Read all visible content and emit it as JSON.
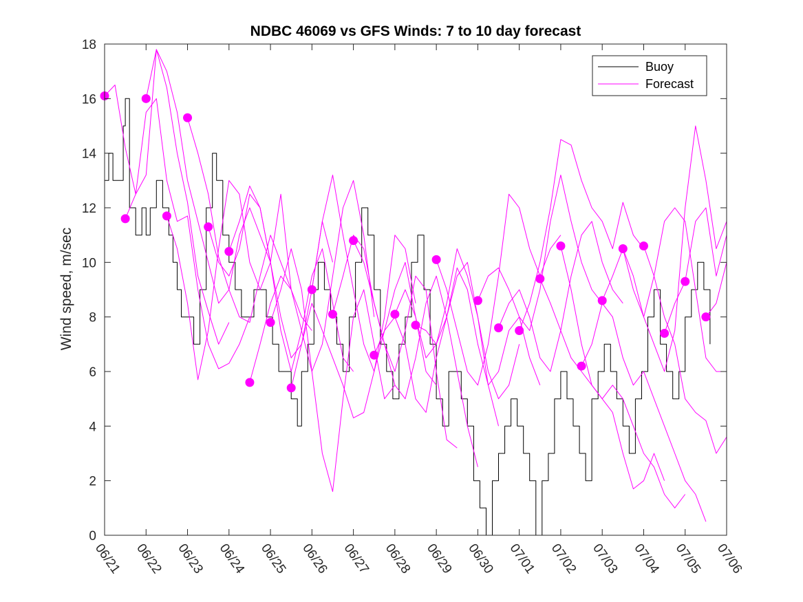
{
  "chart_data": {
    "type": "line",
    "title": "NDBC 46069 vs GFS Winds: 7 to 10 day forecast",
    "xlabel": "",
    "ylabel": "Wind speed, m/sec",
    "ylim": [
      0,
      18
    ],
    "yticks": [
      "0",
      "2",
      "4",
      "6",
      "8",
      "10",
      "12",
      "14",
      "16",
      "18"
    ],
    "xlim_days": [
      0,
      15
    ],
    "xticks": [
      "06/21",
      "06/22",
      "06/23",
      "06/24",
      "06/25",
      "06/26",
      "06/27",
      "06/28",
      "06/29",
      "06/30",
      "07/01",
      "07/02",
      "07/03",
      "07/04",
      "07/05",
      "07/06"
    ],
    "grid": false,
    "legend_position": "top-right",
    "legend": [
      {
        "label": "Buoy",
        "color": "#000000"
      },
      {
        "label": "Forecast",
        "color": "#ff00ff"
      }
    ],
    "series": [
      {
        "name": "Buoy",
        "color": "#000000",
        "x": [
          0,
          0.1,
          0.2,
          0.35,
          0.45,
          0.5,
          0.6,
          0.75,
          0.9,
          1.0,
          1.1,
          1.25,
          1.4,
          1.55,
          1.65,
          1.75,
          1.85,
          2.0,
          2.15,
          2.3,
          2.45,
          2.6,
          2.7,
          2.85,
          3.0,
          3.15,
          3.3,
          3.45,
          3.6,
          3.75,
          3.9,
          4.05,
          4.2,
          4.35,
          4.5,
          4.65,
          4.75,
          4.9,
          5.05,
          5.15,
          5.3,
          5.45,
          5.6,
          5.75,
          5.9,
          6.05,
          6.2,
          6.35,
          6.5,
          6.65,
          6.8,
          6.95,
          7.1,
          7.25,
          7.4,
          7.55,
          7.7,
          7.85,
          8.0,
          8.15,
          8.3,
          8.45,
          8.6,
          8.75,
          8.9,
          9.05,
          9.2,
          9.35,
          9.5,
          9.65,
          9.8,
          9.95,
          10.1,
          10.25,
          10.4,
          10.55,
          10.7,
          10.85,
          11.0,
          11.15,
          11.3,
          11.45,
          11.6,
          11.75,
          11.9,
          12.05,
          12.2,
          12.35,
          12.5,
          12.65,
          12.8,
          12.95,
          13.1,
          13.25,
          13.4,
          13.55,
          13.7,
          13.85,
          14.0,
          14.15,
          14.3,
          14.45,
          14.6
        ],
        "values": [
          13,
          14,
          13,
          13,
          15,
          16,
          12,
          11,
          12,
          11,
          12,
          13,
          12,
          11,
          10,
          9,
          8,
          8,
          7,
          9,
          12,
          14,
          13,
          11,
          10,
          9,
          8,
          8,
          9,
          9,
          8,
          7,
          6,
          6,
          5,
          4,
          6,
          7,
          9,
          10,
          9,
          8,
          7,
          6,
          8,
          10,
          12,
          11,
          9,
          7,
          6,
          5,
          7,
          8,
          10,
          11,
          9,
          7,
          5,
          4,
          6,
          6,
          5,
          4,
          2,
          1,
          0,
          2,
          3,
          4,
          5,
          4,
          3,
          2,
          0,
          2,
          3,
          5,
          6,
          5,
          4,
          3,
          2,
          5,
          6,
          7,
          6,
          5,
          4,
          3,
          5,
          6,
          8,
          9,
          7,
          6,
          5,
          6,
          8,
          9,
          10,
          9,
          7
        ]
      },
      {
        "name": "Forecast (run 1)",
        "color": "#ff00ff",
        "x": [
          0,
          0.25,
          0.5,
          0.75,
          1.0,
          1.25,
          1.5,
          1.75,
          2.0,
          2.25,
          2.5,
          2.75,
          3.0
        ],
        "values": [
          16.1,
          16.5,
          14.2,
          12.5,
          13.2,
          17.8,
          16.4,
          14.0,
          12.2,
          9.5,
          8.2,
          7.0,
          7.8
        ]
      },
      {
        "name": "Forecast (run 2)",
        "color": "#ff00ff",
        "x": [
          0.5,
          0.75,
          1.0,
          1.25,
          1.5,
          1.75,
          2.0,
          2.25,
          2.5,
          2.75,
          3.0,
          3.25,
          3.5
        ],
        "values": [
          11.6,
          12.5,
          15.5,
          16.0,
          13.0,
          11.5,
          11.7,
          9.0,
          7.0,
          6.1,
          6.3,
          7.0,
          8.0
        ]
      },
      {
        "name": "Forecast (run 3)",
        "color": "#ff00ff",
        "x": [
          1.0,
          1.25,
          1.5,
          1.75,
          2.0,
          2.25,
          2.5,
          2.75,
          3.0,
          3.25,
          3.5,
          3.75,
          4.0
        ],
        "values": [
          16.0,
          17.8,
          17.0,
          15.5,
          13.0,
          11.5,
          10.0,
          8.5,
          9.0,
          11.0,
          12.0,
          11.0,
          10.0
        ]
      },
      {
        "name": "Forecast (run 4)",
        "color": "#ff00ff",
        "x": [
          1.5,
          1.75,
          2.0,
          2.25,
          2.5,
          2.75,
          3.0,
          3.25,
          3.5,
          3.75,
          4.0,
          4.25,
          4.5
        ],
        "values": [
          11.7,
          10.5,
          8.5,
          5.7,
          7.5,
          10.5,
          13.0,
          12.5,
          10.0,
          9.0,
          10.0,
          12.5,
          9.0
        ]
      },
      {
        "name": "Forecast (run 5)",
        "color": "#ff00ff",
        "x": [
          2.0,
          2.25,
          2.5,
          2.75,
          3.0,
          3.25,
          3.5,
          3.75,
          4.0,
          4.25,
          4.5,
          4.75,
          5.0
        ],
        "values": [
          15.3,
          14.0,
          12.5,
          10.2,
          9.0,
          8.0,
          7.8,
          9.5,
          11.0,
          10.0,
          9.0,
          8.0,
          7.5
        ]
      },
      {
        "name": "Forecast (run 6)",
        "color": "#ff00ff",
        "x": [
          2.5,
          2.75,
          3.0,
          3.25,
          3.5,
          3.75,
          4.0,
          4.25,
          4.5,
          4.75,
          5.0,
          5.25,
          5.5
        ],
        "values": [
          11.3,
          10.0,
          9.5,
          10.5,
          12.5,
          12.0,
          10.0,
          8.0,
          6.5,
          7.0,
          9.0,
          11.5,
          10.0
        ]
      },
      {
        "name": "Forecast (run 7)",
        "color": "#ff00ff",
        "x": [
          3.0,
          3.25,
          3.5,
          3.75,
          4.0,
          4.25,
          4.5,
          4.75,
          5.0,
          5.25,
          5.5,
          5.75,
          6.0
        ],
        "values": [
          10.4,
          11.5,
          12.8,
          12.0,
          10.0,
          7.5,
          6.0,
          7.5,
          9.5,
          10.5,
          8.5,
          6.5,
          6.0
        ]
      },
      {
        "name": "Forecast (run 8)",
        "color": "#ff00ff",
        "x": [
          3.5,
          3.75,
          4.0,
          4.25,
          4.5,
          4.75,
          5.0,
          5.25,
          5.5,
          5.75,
          6.0,
          6.25,
          6.5
        ],
        "values": [
          5.6,
          7.0,
          8.5,
          9.5,
          9.0,
          7.5,
          6.0,
          7.0,
          9.5,
          12.0,
          13.0,
          11.0,
          8.0
        ]
      },
      {
        "name": "Forecast (run 9)",
        "color": "#ff00ff",
        "x": [
          4.0,
          4.25,
          4.5,
          4.75,
          5.0,
          5.25,
          5.5,
          5.75,
          6.0,
          6.25,
          6.5,
          6.75,
          7.0
        ],
        "values": [
          7.8,
          9.0,
          10.5,
          9.0,
          6.0,
          3.0,
          1.6,
          5.0,
          8.0,
          9.0,
          7.0,
          5.0,
          5.5
        ]
      },
      {
        "name": "Forecast (run 10)",
        "color": "#ff00ff",
        "x": [
          4.5,
          4.75,
          5.0,
          5.25,
          5.5,
          5.75,
          6.0,
          6.25,
          6.5,
          6.75,
          7.0,
          7.25,
          7.5
        ],
        "values": [
          5.4,
          7.0,
          8.5,
          7.5,
          6.5,
          5.5,
          4.3,
          4.5,
          6.0,
          8.0,
          11.0,
          10.5,
          8.5
        ]
      },
      {
        "name": "Forecast (run 11)",
        "color": "#ff00ff",
        "x": [
          5.0,
          5.25,
          5.5,
          5.75,
          6.0,
          6.25,
          6.5,
          6.75,
          7.0,
          7.25,
          7.5,
          7.75,
          8.0
        ],
        "values": [
          9.0,
          11.5,
          13.2,
          11.0,
          9.0,
          7.0,
          6.0,
          7.5,
          9.0,
          10.0,
          8.0,
          6.0,
          5.5
        ]
      },
      {
        "name": "Forecast (run 12)",
        "color": "#ff00ff",
        "x": [
          5.5,
          5.75,
          6.0,
          6.25,
          6.5,
          6.75,
          7.0,
          7.25,
          7.5,
          7.75,
          8.0,
          8.25,
          8.5
        ],
        "values": [
          8.1,
          9.5,
          11.0,
          10.5,
          8.5,
          7.0,
          6.0,
          7.5,
          9.5,
          9.0,
          6.0,
          3.5,
          3.2
        ]
      },
      {
        "name": "Forecast (run 13)",
        "color": "#ff00ff",
        "x": [
          6.0,
          6.25,
          6.5,
          6.75,
          7.0,
          7.25,
          7.5,
          7.75,
          8.0,
          8.25,
          8.5,
          8.75,
          9.0
        ],
        "values": [
          10.8,
          10.0,
          8.5,
          7.0,
          5.5,
          5.0,
          6.5,
          8.5,
          9.5,
          8.0,
          6.0,
          4.0,
          2.5
        ]
      },
      {
        "name": "Forecast (run 14)",
        "color": "#ff00ff",
        "x": [
          6.5,
          6.75,
          7.0,
          7.25,
          7.5,
          7.75,
          8.0,
          8.25,
          8.5,
          8.75,
          9.0,
          9.25,
          9.5
        ],
        "values": [
          6.6,
          7.5,
          8.0,
          7.0,
          5.0,
          4.5,
          6.5,
          8.0,
          9.5,
          10.0,
          8.0,
          5.5,
          4.0
        ]
      },
      {
        "name": "Forecast (run 15)",
        "color": "#ff00ff",
        "x": [
          7.0,
          7.25,
          7.5,
          7.75,
          8.0,
          8.25,
          8.5,
          8.75,
          9.0,
          9.25,
          9.5,
          9.75,
          10.0
        ],
        "values": [
          8.1,
          9.0,
          8.0,
          6.5,
          7.0,
          8.5,
          10.5,
          9.5,
          8.0,
          6.0,
          5.0,
          5.5,
          7.0
        ]
      },
      {
        "name": "Forecast (run 16)",
        "color": "#ff00ff",
        "x": [
          7.5,
          7.75,
          8.0,
          8.25,
          8.5,
          8.75,
          9.0,
          9.25,
          9.5,
          9.75,
          10.0,
          10.25,
          10.5
        ],
        "values": [
          7.7,
          7.5,
          7.0,
          8.0,
          9.8,
          9.0,
          7.0,
          5.5,
          6.0,
          7.5,
          8.0,
          6.5,
          5.5
        ]
      },
      {
        "name": "Forecast (run 17)",
        "color": "#ff00ff",
        "x": [
          8.0,
          8.25,
          8.5,
          8.75,
          9.0,
          9.25,
          9.5,
          9.75,
          10.0,
          10.25,
          10.5,
          10.75,
          11.0
        ],
        "values": [
          10.1,
          9.0,
          7.5,
          6.0,
          5.5,
          7.0,
          9.5,
          12.5,
          12.0,
          10.5,
          9.5,
          10.5,
          11.0
        ]
      },
      {
        "name": "Forecast (run 18)",
        "color": "#ff00ff",
        "x": [
          9.0,
          9.25,
          9.5,
          9.75,
          10.0,
          10.25,
          10.5,
          10.75,
          11.0,
          11.25,
          11.5,
          11.75,
          12.0
        ],
        "values": [
          8.6,
          9.5,
          9.8,
          9.0,
          8.0,
          7.5,
          9.0,
          11.5,
          13.2,
          11.5,
          10.0,
          9.0,
          8.5
        ]
      },
      {
        "name": "Forecast (run 19)",
        "color": "#ff00ff",
        "x": [
          9.5,
          9.75,
          10.0,
          10.25,
          10.5,
          10.75,
          11.0,
          11.25,
          11.5,
          11.75,
          12.0,
          12.25,
          12.5
        ],
        "values": [
          7.6,
          8.5,
          9.0,
          8.0,
          6.5,
          6.0,
          7.5,
          9.5,
          11.0,
          11.5,
          10.0,
          9.0,
          8.5
        ]
      },
      {
        "name": "Forecast (run 20)",
        "color": "#ff00ff",
        "x": [
          10.0,
          10.25,
          10.5,
          10.75,
          11.0,
          11.25,
          11.5,
          11.75,
          12.0,
          12.25,
          12.5,
          12.75,
          13.0
        ],
        "values": [
          7.5,
          8.5,
          10.0,
          12.0,
          14.5,
          14.3,
          13.0,
          12.0,
          11.5,
          10.5,
          12.2,
          11.0,
          10.5
        ]
      },
      {
        "name": "Forecast (run 21)",
        "color": "#ff00ff",
        "x": [
          10.5,
          10.75,
          11.0,
          11.25,
          11.5,
          11.75,
          12.0,
          12.25,
          12.5,
          12.75,
          13.0,
          13.25,
          13.5
        ],
        "values": [
          9.4,
          8.5,
          7.5,
          6.5,
          6.0,
          5.5,
          5.0,
          4.5,
          3.0,
          1.7,
          2.0,
          3.0,
          2.0
        ]
      },
      {
        "name": "Forecast (run 22)",
        "color": "#ff00ff",
        "x": [
          11.0,
          11.25,
          11.5,
          11.75,
          12.0,
          12.25,
          12.5,
          12.75,
          13.0,
          13.25,
          13.5,
          13.75,
          14.0
        ],
        "values": [
          10.6,
          9.0,
          7.0,
          5.5,
          5.0,
          5.5,
          5.0,
          4.0,
          3.0,
          2.5,
          1.5,
          1.0,
          1.5
        ]
      },
      {
        "name": "Forecast (run 23)",
        "color": "#ff00ff",
        "x": [
          11.5,
          11.75,
          12.0,
          12.25,
          12.5,
          12.75,
          13.0,
          13.25,
          13.5,
          13.75,
          14.0,
          14.25,
          14.5
        ],
        "values": [
          6.2,
          7.0,
          8.5,
          8.0,
          6.5,
          5.5,
          6.0,
          5.0,
          4.0,
          3.0,
          2.0,
          1.5,
          0.5
        ]
      },
      {
        "name": "Forecast (run 24)",
        "color": "#ff00ff",
        "x": [
          12.0,
          12.25,
          12.5,
          12.75,
          13.0,
          13.25,
          13.5,
          13.75,
          14.0,
          14.25,
          14.5,
          14.75,
          15.0
        ],
        "values": [
          8.6,
          9.5,
          10.5,
          9.0,
          8.0,
          9.5,
          11.5,
          12.0,
          11.5,
          9.0,
          6.5,
          6.0,
          6.0
        ]
      },
      {
        "name": "Forecast (run 25)",
        "color": "#ff00ff",
        "x": [
          12.5,
          12.75,
          13.0,
          13.25,
          13.5,
          13.75,
          14.0,
          14.25,
          14.5,
          14.75,
          15.0
        ],
        "values": [
          10.5,
          9.5,
          8.0,
          7.0,
          6.0,
          7.5,
          12.0,
          15.0,
          13.0,
          10.5,
          11.5
        ]
      },
      {
        "name": "Forecast (run 26)",
        "color": "#ff00ff",
        "x": [
          13.0,
          13.25,
          13.5,
          13.75,
          14.0,
          14.25,
          14.5,
          14.75,
          15.0
        ],
        "values": [
          10.6,
          9.5,
          8.0,
          7.0,
          5.0,
          4.5,
          4.2,
          3.0,
          3.6
        ]
      },
      {
        "name": "Forecast (run 27)",
        "color": "#ff00ff",
        "x": [
          13.5,
          13.75,
          14.0,
          14.25,
          14.5,
          14.75,
          15.0
        ],
        "values": [
          7.4,
          8.5,
          9.3,
          11.5,
          12.0,
          9.5,
          11.0
        ]
      },
      {
        "name": "Forecast (run 28)",
        "color": "#ff00ff",
        "x": [
          14.5,
          14.75,
          15.0
        ],
        "values": [
          8.0,
          8.5,
          10.0
        ]
      }
    ],
    "markers": {
      "name": "Forecast verification points",
      "color": "#ff00ff",
      "x": [
        0.0,
        0.5,
        1.0,
        1.5,
        2.0,
        2.5,
        3.0,
        3.5,
        4.0,
        4.5,
        5.0,
        5.5,
        6.0,
        6.5,
        7.0,
        7.5,
        8.0,
        9.0,
        9.5,
        10.0,
        10.5,
        11.0,
        11.5,
        12.0,
        12.5,
        13.0,
        13.5,
        14.0,
        14.5
      ],
      "values": [
        16.1,
        11.6,
        16.0,
        11.7,
        15.3,
        11.3,
        10.4,
        5.6,
        7.8,
        5.4,
        9.0,
        8.1,
        10.8,
        6.6,
        8.1,
        7.7,
        10.1,
        8.6,
        7.6,
        7.5,
        9.4,
        10.6,
        6.2,
        8.6,
        10.5,
        10.6,
        7.4,
        9.3,
        8.0
      ]
    }
  }
}
